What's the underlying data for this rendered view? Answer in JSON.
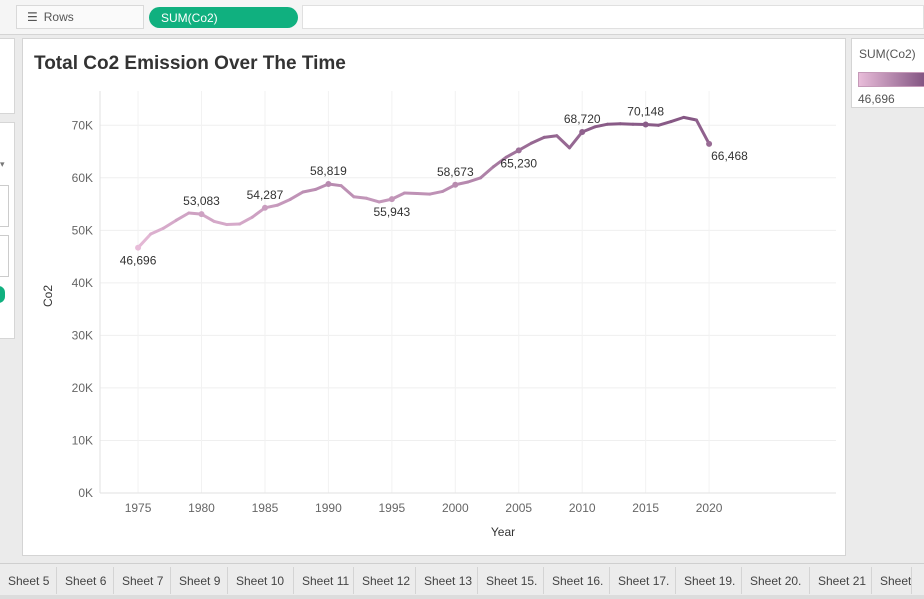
{
  "shelf": {
    "rows_label": "Rows",
    "rows_pill": "SUM(Co2)"
  },
  "legend": {
    "title": "SUM(Co2)",
    "min_label": "46,696",
    "color_low": "#e8bcd9",
    "color_high": "#845683"
  },
  "tabs": [
    "Sheet 5",
    "Sheet 6",
    "Sheet 7",
    "Sheet 9",
    "Sheet 10",
    "Sheet 11",
    "Sheet 12",
    "Sheet 13",
    "Sheet 15.",
    "Sheet 16.",
    "Sheet 17.",
    "Sheet 19.",
    "Sheet 20.",
    "Sheet 21",
    "Sheet"
  ],
  "chart_data": {
    "type": "line",
    "title": "Total Co2 Emission Over The Time",
    "xlabel": "Year",
    "ylabel": "Co2",
    "xlim": [
      1972,
      2030
    ],
    "ylim": [
      0,
      75000
    ],
    "x_ticks": [
      1975,
      1980,
      1985,
      1990,
      1995,
      2000,
      2005,
      2010,
      2015,
      2020
    ],
    "y_ticks": [
      0,
      10000,
      20000,
      30000,
      40000,
      50000,
      60000,
      70000
    ],
    "y_tick_labels": [
      "0K",
      "10K",
      "20K",
      "30K",
      "40K",
      "50K",
      "60K",
      "70K"
    ],
    "grid": true,
    "color_low": "#e8bcd9",
    "color_high": "#845683",
    "x": [
      1975,
      1976,
      1977,
      1978,
      1979,
      1980,
      1981,
      1982,
      1983,
      1984,
      1985,
      1986,
      1987,
      1988,
      1989,
      1990,
      1991,
      1992,
      1993,
      1994,
      1995,
      1996,
      1997,
      1998,
      1999,
      2000,
      2001,
      2002,
      2003,
      2004,
      2005,
      2006,
      2007,
      2008,
      2009,
      2010,
      2011,
      2012,
      2013,
      2014,
      2015,
      2016,
      2017,
      2018,
      2019,
      2020
    ],
    "values": [
      46696,
      49300,
      50400,
      51900,
      53300,
      53083,
      51700,
      51100,
      51200,
      52500,
      54287,
      54800,
      55900,
      57300,
      57800,
      58819,
      58500,
      56400,
      56100,
      55400,
      55943,
      57100,
      57000,
      56900,
      57400,
      58673,
      59200,
      60000,
      62100,
      63900,
      65230,
      66600,
      67700,
      68000,
      65700,
      68720,
      69700,
      70200,
      70300,
      70200,
      70148,
      70000,
      70700,
      71500,
      71000,
      66468
    ],
    "data_labels": [
      {
        "x": 1975,
        "value": 46696,
        "text": "46,696",
        "pos": "below"
      },
      {
        "x": 1980,
        "value": 53083,
        "text": "53,083",
        "pos": "above"
      },
      {
        "x": 1985,
        "value": 54287,
        "text": "54,287",
        "pos": "above"
      },
      {
        "x": 1990,
        "value": 58819,
        "text": "58,819",
        "pos": "above"
      },
      {
        "x": 1995,
        "value": 55943,
        "text": "55,943",
        "pos": "below"
      },
      {
        "x": 2000,
        "value": 58673,
        "text": "58,673",
        "pos": "above"
      },
      {
        "x": 2005,
        "value": 65230,
        "text": "65,230",
        "pos": "below"
      },
      {
        "x": 2010,
        "value": 68720,
        "text": "68,720",
        "pos": "above"
      },
      {
        "x": 2015,
        "value": 70148,
        "text": "70,148",
        "pos": "above"
      },
      {
        "x": 2020,
        "value": 66468,
        "text": "66,468",
        "pos": "right"
      }
    ]
  }
}
